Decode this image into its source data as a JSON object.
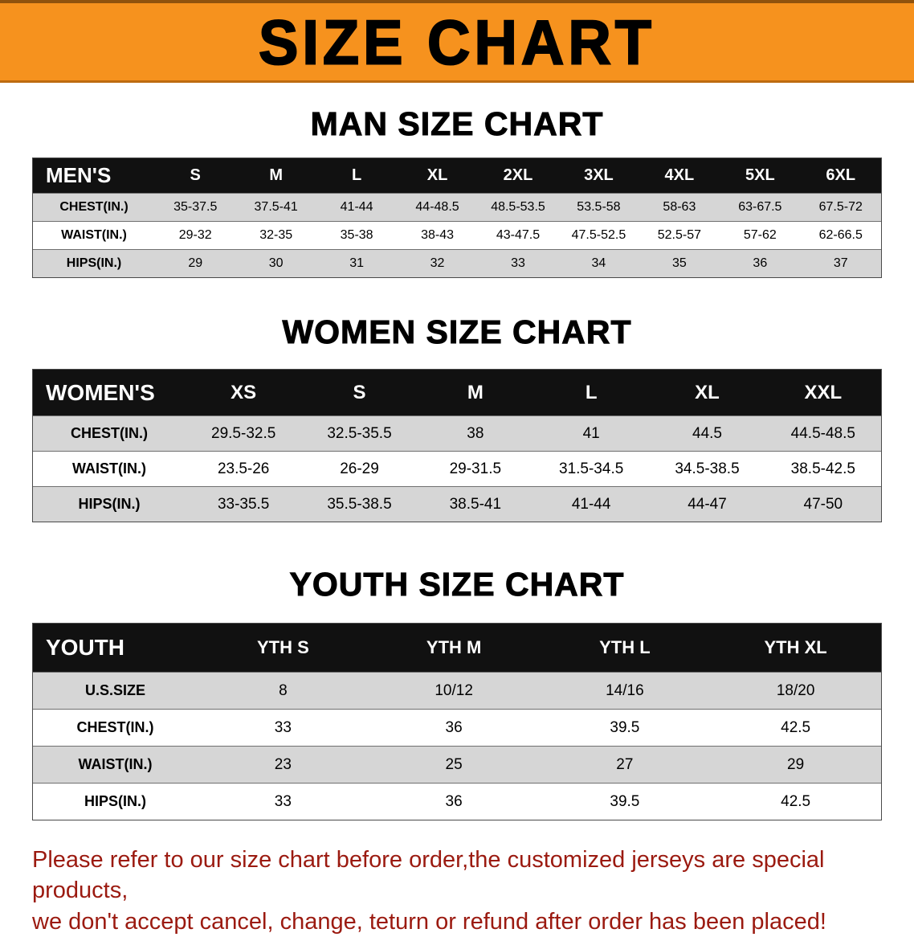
{
  "banner": {
    "title": "SIZE CHART"
  },
  "sections": [
    {
      "heading": "MAN SIZE CHART",
      "table": {
        "header_label": "MEN'S",
        "sizes": [
          "S",
          "M",
          "L",
          "XL",
          "2XL",
          "3XL",
          "4XL",
          "5XL",
          "6XL"
        ],
        "rows": [
          {
            "label": "CHEST(IN.)",
            "values": [
              "35-37.5",
              "37.5-41",
              "41-44",
              "44-48.5",
              "48.5-53.5",
              "53.5-58",
              "58-63",
              "63-67.5",
              "67.5-72"
            ]
          },
          {
            "label": "WAIST(IN.)",
            "values": [
              "29-32",
              "32-35",
              "35-38",
              "38-43",
              "43-47.5",
              "47.5-52.5",
              "52.5-57",
              "57-62",
              "62-66.5"
            ]
          },
          {
            "label": "HIPS(IN.)",
            "values": [
              "29",
              "30",
              "31",
              "32",
              "33",
              "34",
              "35",
              "36",
              "37"
            ]
          }
        ]
      }
    },
    {
      "heading": "WOMEN SIZE CHART",
      "table": {
        "header_label": "WOMEN'S",
        "sizes": [
          "XS",
          "S",
          "M",
          "L",
          "XL",
          "XXL"
        ],
        "rows": [
          {
            "label": "CHEST(IN.)",
            "values": [
              "29.5-32.5",
              "32.5-35.5",
              "38",
              "41",
              "44.5",
              "44.5-48.5"
            ]
          },
          {
            "label": "WAIST(IN.)",
            "values": [
              "23.5-26",
              "26-29",
              "29-31.5",
              "31.5-34.5",
              "34.5-38.5",
              "38.5-42.5"
            ]
          },
          {
            "label": "HIPS(IN.)",
            "values": [
              "33-35.5",
              "35.5-38.5",
              "38.5-41",
              "41-44",
              "44-47",
              "47-50"
            ]
          }
        ]
      }
    },
    {
      "heading": "YOUTH SIZE CHART",
      "table": {
        "header_label": "YOUTH",
        "sizes": [
          "YTH S",
          "YTH M",
          "YTH L",
          "YTH XL"
        ],
        "rows": [
          {
            "label": "U.S.SIZE",
            "values": [
              "8",
              "10/12",
              "14/16",
              "18/20"
            ]
          },
          {
            "label": "CHEST(IN.)",
            "values": [
              "33",
              "36",
              "39.5",
              "42.5"
            ]
          },
          {
            "label": "WAIST(IN.)",
            "values": [
              "23",
              "25",
              "27",
              "29"
            ]
          },
          {
            "label": "HIPS(IN.)",
            "values": [
              "33",
              "36",
              "39.5",
              "42.5"
            ]
          }
        ]
      }
    }
  ],
  "footer": {
    "line1": "Please refer to our size chart before order,the customized jerseys are special products,",
    "line2": "we don't accept cancel, change, teturn or refund after order has been placed!"
  },
  "colors": {
    "banner_bg": "#F6921E",
    "header_bg": "#111111",
    "row_alt_bg": "#d6d6d6",
    "footer_text": "#9b1a10"
  }
}
